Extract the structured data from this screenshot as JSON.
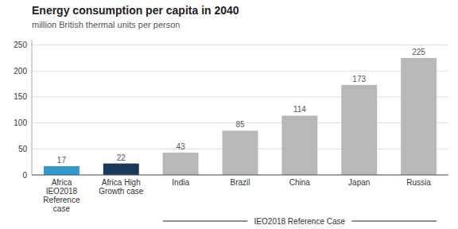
{
  "chart_data": {
    "type": "bar",
    "title": "Energy consumption per capita in 2040",
    "subtitle": "million British thermal units per person",
    "categories": [
      "Africa\nIEO2018\nReference\ncase",
      "Africa High\nGrowth case",
      "India",
      "Brazil",
      "China",
      "Japan",
      "Russia"
    ],
    "values": [
      17,
      22,
      43,
      85,
      114,
      173,
      225
    ],
    "colors": [
      "#3399cc",
      "#1a3a5c",
      "#b8b8b8",
      "#b8b8b8",
      "#b8b8b8",
      "#b8b8b8",
      "#b8b8b8"
    ],
    "ylim": [
      0,
      260
    ],
    "yticks": [
      0,
      50,
      100,
      150,
      200,
      250
    ],
    "grid": true,
    "data_labels": true,
    "annotation": {
      "text": "IEO2018 Reference Case",
      "from": "India",
      "to": "Russia"
    }
  }
}
